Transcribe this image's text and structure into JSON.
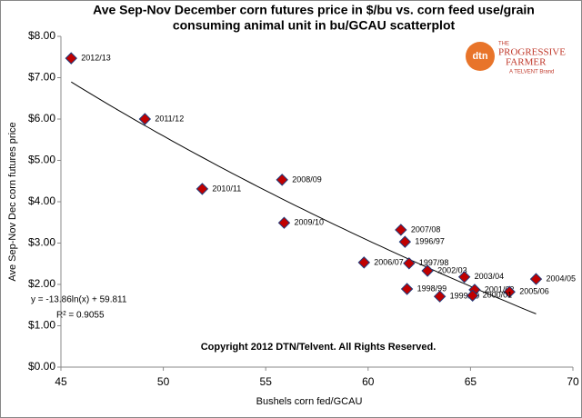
{
  "chart_data": {
    "type": "scatter",
    "title": [
      "Ave Sep-Nov December corn futures price in $/bu vs. corn feed use/grain",
      "consuming animal unit in bu/GCAU scatterplot"
    ],
    "x_label": "Bushels corn fed/GCAU",
    "y_label": "Ave Sep-Nov Dec corn futures price",
    "annotation": "Copyright 2012 DTN/Telvent. All Rights Reserved.",
    "logo": {
      "mark": "dtn",
      "line1": "THE",
      "line2": "PROGRESSIVE",
      "line3": "FARMER",
      "line4": "A TELVENT Brand"
    },
    "labels": [
      "2012/13",
      "2011/12",
      "2010/11",
      "2008/09",
      "2009/10",
      "2007/08",
      "1996/97",
      "2006/07",
      "1997/98",
      "2002/03",
      "2003/04",
      "2004/05",
      "2001/02",
      "2005/06",
      "1998/99",
      "1999/00",
      "2000/01"
    ],
    "x": [
      45.5,
      49.1,
      51.9,
      55.8,
      55.9,
      61.6,
      61.8,
      59.8,
      62.0,
      62.9,
      64.7,
      68.2,
      65.2,
      66.9,
      61.9,
      63.5,
      65.1
    ],
    "values": [
      7.47,
      6.0,
      4.31,
      4.53,
      3.49,
      3.32,
      3.03,
      2.53,
      2.51,
      2.33,
      2.18,
      2.13,
      1.87,
      1.82,
      1.89,
      1.71,
      1.73
    ],
    "color": "#c00000",
    "edge_color": "#1f3a7a",
    "trendline": {
      "a": -13.86,
      "b": 59.811,
      "label": "y = -13.86ln(x) + 59.811",
      "r2_label": "R² = 0.9055"
    },
    "xlim": [
      45,
      70
    ],
    "xticks": [
      45,
      50,
      55,
      60,
      65,
      70
    ],
    "ylim": [
      0,
      8
    ],
    "yticks": [
      {
        "value": 0,
        "label": "$0.00"
      },
      {
        "value": 1,
        "label": "$1.00"
      },
      {
        "value": 2,
        "label": "$2.00"
      },
      {
        "value": 3,
        "label": "$3.00"
      },
      {
        "value": 4,
        "label": "$4.00"
      },
      {
        "value": 5,
        "label": "$5.00"
      },
      {
        "value": 6,
        "label": "$6.00"
      },
      {
        "value": 7,
        "label": "$7.00"
      },
      {
        "value": 8,
        "label": "$8.00"
      }
    ],
    "grid": false
  }
}
